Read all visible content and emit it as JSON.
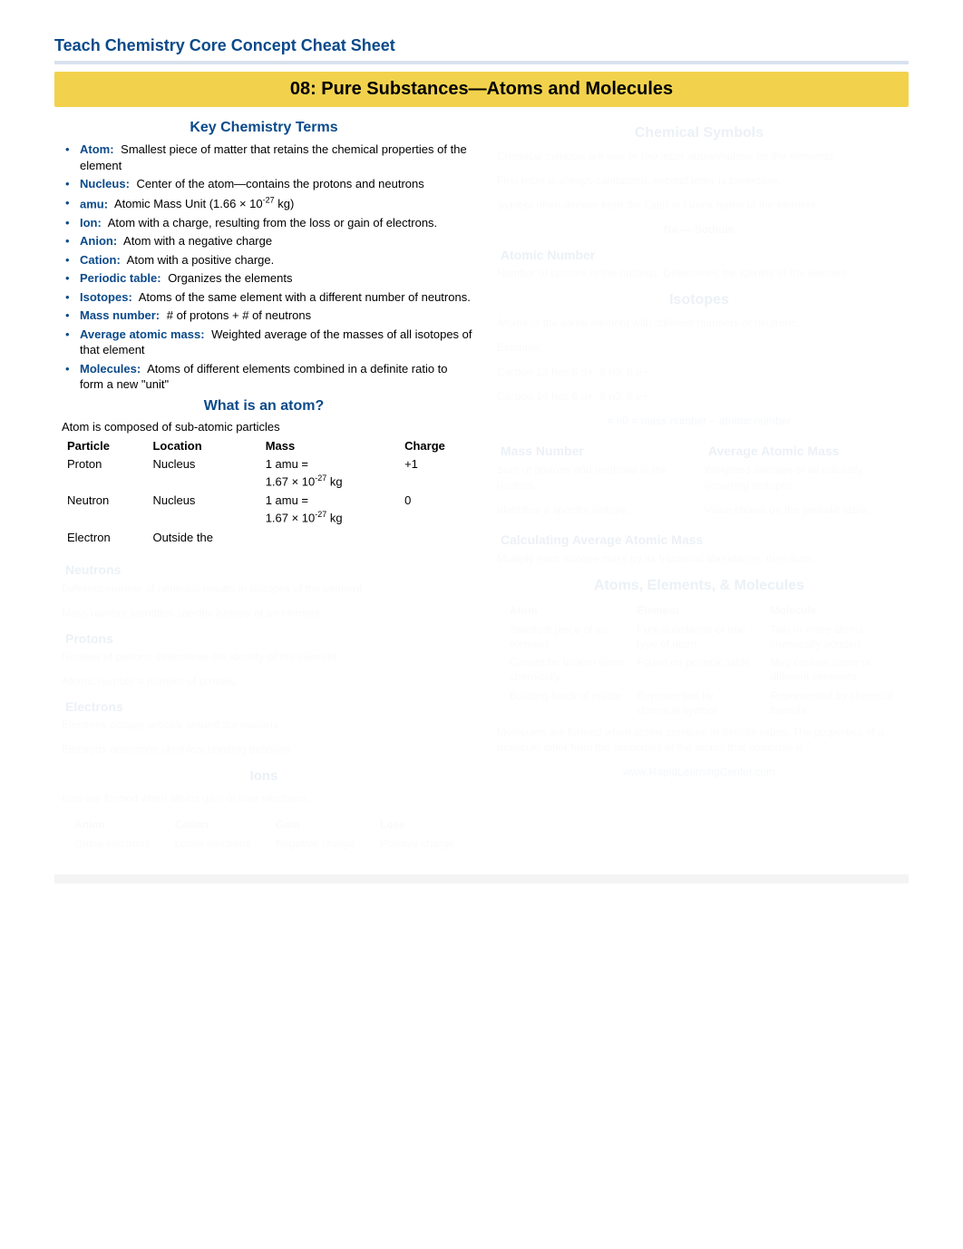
{
  "page_title": "Teach Chemistry Core Concept Cheat Sheet",
  "banner": "08: Pure Substances—Atoms and Molecules",
  "left": {
    "key_terms_title": "Key Chemistry Terms",
    "terms": [
      {
        "name": "Atom:",
        "def": "Smallest piece of matter that retains the chemical properties of the element"
      },
      {
        "name": "Nucleus:",
        "def": "Center of the atom—contains the protons and neutrons"
      },
      {
        "name": "amu:",
        "def_html": "Atomic Mass Unit (1.66 × 10<sup class='super'>-27</sup> kg)"
      },
      {
        "name": "Ion:",
        "def": "Atom with a charge, resulting from the loss or gain of electrons."
      },
      {
        "name": "Anion:",
        "def": "Atom with a negative charge"
      },
      {
        "name": "Cation:",
        "def": "Atom with a positive charge."
      },
      {
        "name": "Periodic table:",
        "def": "Organizes the elements"
      },
      {
        "name": "Isotopes:",
        "def": "Atoms of the same element with a different number of neutrons."
      },
      {
        "name": "Mass number:",
        "def": "# of protons + # of neutrons"
      },
      {
        "name": "Average atomic mass:",
        "def": "Weighted average of the masses of all isotopes of that element"
      },
      {
        "name": "Molecules:",
        "def": "Atoms of different elements combined in a definite ratio to form a new \"unit\""
      }
    ],
    "what_is_atom_title": "What is an atom?",
    "atom_intro": "Atom is composed of sub-atomic particles",
    "particle_headers": [
      "Particle",
      "Location",
      "Mass",
      "Charge"
    ],
    "particle_rows": [
      {
        "p": "Proton",
        "loc": "Nucleus",
        "mass_html": "1 amu =<br>1.67 × 10<sup class='super'>-27</sup> kg",
        "charge": "+1"
      },
      {
        "p": "Neutron",
        "loc": "Nucleus",
        "mass_html": "1 amu =<br>1.67 × 10<sup class='super'>-27</sup> kg",
        "charge": "0"
      },
      {
        "p": "Electron",
        "loc": "Outside the",
        "mass_html": "",
        "charge": ""
      }
    ],
    "hidden_subheads": [
      "Neutrons",
      "Protons",
      "Electrons",
      "Ions"
    ],
    "hidden_lines": [
      "Different number of neutrons results in isotopes of the element",
      "Mass number identifies specific isotope of an element",
      "Number of protons determines the identity of the element",
      "Atomic number = number of protons",
      "Electrons occupy orbitals around the nucleus",
      "Electrons determine chemical bonding behavior",
      "Ions form when atoms gain or lose electrons"
    ],
    "ions_intro": "Ions are formed when atoms gain or lose electrons.",
    "ion_headers": [
      "Anion",
      "Cation",
      "Gain",
      "Lose"
    ],
    "ion_cols": [
      "Gains electrons",
      "Loses electrons",
      "Negative charge",
      "Positive charge"
    ]
  },
  "right": {
    "chem_sym_title": "Chemical Symbols",
    "chem_sym_lines": [
      "Chemical symbols are one or two letter abbreviations for the elements.",
      "First letter is always capitalized; second letter is lowercase.",
      "Symbol often derives from the Latin or Greek name of the element."
    ],
    "symbol_example": "Na  — Sodium",
    "atomic_number_title": "Atomic Number",
    "atomic_number_text": "Number of protons in the nucleus. Determines the identity of the element.",
    "isotopes_title": "Isotopes",
    "isotopes_text": "Atoms of the same element with different numbers of neutrons.",
    "isotope_example_label": "Example:",
    "isotope_example_lines": [
      "Carbon-12 has 6 p+, 6 n0, 6 e−",
      "Carbon-14 has 6 p+, 8 n0, 6 e−"
    ],
    "isotope_formula": "# n0 = mass number − atomic number",
    "mass_number_title": "Mass Number",
    "avg_mass_title": "Average Atomic Mass",
    "mass_number_lines": [
      "Sum of protons and neutrons in the nucleus.",
      "Identifies a specific isotope."
    ],
    "avg_mass_lines": [
      "Weighted average of all naturally occurring isotopes.",
      "Value shown on the periodic table."
    ],
    "calc_title": "Calculating Average Atomic Mass",
    "calc_text": "Multiply each isotope mass by its fractional abundance, then sum.",
    "molecules_title": "Atoms, Elements, & Molecules",
    "mol_headers": [
      "Atom",
      "Element",
      "Molecule"
    ],
    "mol_rows": [
      [
        "Smallest piece of an element",
        "Pure substance of one type of atom",
        "Two or more atoms chemically bonded"
      ],
      [
        "Cannot be broken down chemically",
        "Found on periodic table",
        "May contain same or different elements"
      ],
      [
        "Building block of matter",
        "Represented by chemical symbol",
        "Represented by chemical formula"
      ]
    ],
    "final_note": "Molecules are formed when atoms combine in definite ratios. The properties of a molecule differ from the properties of the atoms that compose it.",
    "link_text": "www.RapidLearningCenter.com"
  },
  "colors": {
    "title_blue": "#0b4a8a",
    "banner_bg": "#f2d24d",
    "divider": "#d9e2ee",
    "blur_overlay": "rgba(255,255,255,0.92)"
  }
}
